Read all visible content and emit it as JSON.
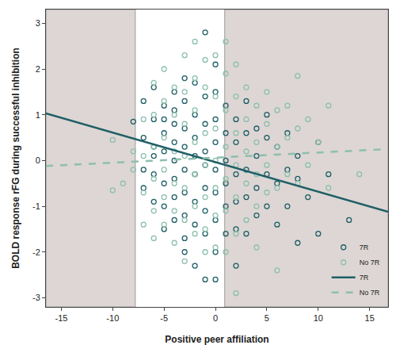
{
  "chart_data": {
    "type": "scatter",
    "x_label": "Positive peer affiliation",
    "y_label": "BOLD response rFG during successful inhibition",
    "xlim": [
      -16.5,
      16.8
    ],
    "ylim": [
      -3.2,
      3.3
    ],
    "xticks": [
      -15,
      -10,
      -5,
      0,
      5,
      10,
      15
    ],
    "yticks": [
      -3,
      -2,
      -1,
      0,
      1,
      2,
      3
    ],
    "grid": false,
    "legend": "lower right",
    "shaded_regions": [
      [
        -16.5,
        -7.8
      ],
      [
        0.9,
        16.8
      ]
    ],
    "series": [
      {
        "name": "7R",
        "type": "scatter",
        "marker": "circle-open",
        "color": "#1f5f66",
        "x": [
          -8,
          -7,
          -7,
          -7,
          -7,
          -6,
          -6,
          -6,
          -6,
          -6,
          -6,
          -5,
          -5,
          -5,
          -5,
          -5,
          -5,
          -5,
          -4,
          -4,
          -4,
          -4,
          -4,
          -4,
          -4,
          -4,
          -3,
          -3,
          -3,
          -3,
          -3,
          -3,
          -3,
          -3,
          -3,
          -2,
          -2,
          -2,
          -2,
          -2,
          -2,
          -2,
          -2,
          -1,
          -1,
          -1,
          -1,
          -1,
          -1,
          -1,
          -1,
          -1,
          0,
          0,
          0,
          0,
          0,
          0,
          0,
          0,
          0,
          1,
          1,
          1,
          1,
          1,
          1,
          2,
          2,
          2,
          2,
          2,
          2,
          3,
          3,
          3,
          3,
          3,
          4,
          4,
          4,
          4,
          5,
          5,
          5,
          5,
          6,
          6,
          6,
          7,
          7,
          7,
          8,
          8,
          8,
          9,
          10,
          10,
          11,
          13
        ],
        "values": [
          0.85,
          -0.2,
          0.5,
          1.3,
          -0.6,
          1.6,
          0.9,
          0.3,
          -0.3,
          -0.9,
          0.1,
          1.2,
          0.6,
          0.2,
          -0.5,
          -1.0,
          -1.5,
          0.9,
          1.5,
          0.8,
          0.4,
          0.0,
          -0.4,
          -0.8,
          -1.3,
          1.1,
          1.8,
          1.3,
          0.7,
          0.3,
          -0.2,
          -0.7,
          -1.2,
          -1.7,
          -2.0,
          1.7,
          1.0,
          0.5,
          0.1,
          -0.3,
          -0.9,
          -1.4,
          -2.3,
          2.8,
          1.4,
          0.8,
          0.2,
          -0.1,
          -0.6,
          -1.1,
          -1.6,
          -2.6,
          2.1,
          1.5,
          0.9,
          0.4,
          -0.2,
          -0.7,
          -1.3,
          -2.0,
          -2.6,
          1.2,
          0.6,
          0.0,
          -0.5,
          -1.0,
          -1.6,
          0.9,
          0.4,
          -0.3,
          -0.9,
          -1.5,
          -2.3,
          1.3,
          0.6,
          -0.2,
          -0.8,
          -1.6,
          0.7,
          0.1,
          -0.6,
          -1.2,
          0.5,
          -0.3,
          -1.0,
          1.0,
          0.3,
          -0.5,
          -1.4,
          0.6,
          -0.2,
          -1.0,
          -0.4,
          -1.8,
          0.1,
          -0.8,
          0.4,
          -1.6,
          -0.3,
          -1.3
        ]
      },
      {
        "name": "No 7R",
        "type": "scatter",
        "marker": "circle-open",
        "color": "#8dbfae",
        "x": [
          -10,
          -10,
          -9,
          -8,
          -8,
          -7,
          -7,
          -7,
          -7,
          -6,
          -6,
          -6,
          -6,
          -6,
          -6,
          -5,
          -5,
          -5,
          -5,
          -5,
          -5,
          -4,
          -4,
          -4,
          -4,
          -4,
          -4,
          -3,
          -3,
          -3,
          -3,
          -3,
          -3,
          -3,
          -2,
          -2,
          -2,
          -2,
          -2,
          -2,
          -2,
          -1,
          -1,
          -1,
          -1,
          -1,
          -1,
          -1,
          0,
          0,
          0,
          0,
          0,
          0,
          0,
          1,
          1,
          1,
          1,
          1,
          1,
          1,
          2,
          2,
          2,
          2,
          2,
          2,
          2,
          3,
          3,
          3,
          3,
          3,
          4,
          4,
          4,
          4,
          4,
          5,
          5,
          5,
          5,
          6,
          6,
          6,
          6,
          7,
          7,
          7,
          8,
          8,
          8,
          9,
          9,
          10,
          11,
          11,
          14
        ],
        "values": [
          -0.65,
          0.45,
          -0.5,
          0.2,
          -0.2,
          0.9,
          0.1,
          -0.7,
          -1.4,
          1.7,
          1.0,
          0.3,
          -0.4,
          -1.1,
          -1.7,
          2.0,
          1.3,
          0.5,
          -0.2,
          -0.8,
          -1.4,
          1.6,
          1.0,
          0.2,
          -0.5,
          -1.1,
          -1.8,
          2.3,
          1.5,
          0.8,
          0.1,
          -0.6,
          -1.3,
          -2.2,
          2.6,
          1.8,
          1.1,
          0.4,
          -0.3,
          -1.0,
          -1.6,
          2.2,
          1.6,
          0.6,
          -0.1,
          -0.8,
          -1.5,
          -2.0,
          2.3,
          1.4,
          0.7,
          0.0,
          -0.6,
          -1.2,
          -1.9,
          2.6,
          1.9,
          1.1,
          0.3,
          -0.4,
          -1.1,
          -2.0,
          2.1,
          1.4,
          0.6,
          -0.1,
          -0.8,
          -1.6,
          -2.9,
          1.6,
          0.9,
          0.2,
          -0.5,
          -1.3,
          1.2,
          0.4,
          -0.3,
          -1.0,
          -1.9,
          1.5,
          0.8,
          -0.1,
          -0.7,
          1.1,
          0.3,
          -0.6,
          -2.4,
          1.2,
          0.5,
          -0.3,
          1.85,
          0.7,
          -0.5,
          0.9,
          -0.1,
          0.4,
          1.2,
          -0.6,
          -0.3
        ]
      },
      {
        "name": "7R",
        "type": "line",
        "line_style": "solid",
        "color": "#1f5f66",
        "x": [
          -16.5,
          16.8
        ],
        "values": [
          1.03,
          -1.12
        ]
      },
      {
        "name": "No 7R",
        "type": "line",
        "line_style": "dashed",
        "color": "#8dbfae",
        "x": [
          -16.5,
          16.8
        ],
        "values": [
          -0.12,
          0.25
        ]
      }
    ]
  }
}
